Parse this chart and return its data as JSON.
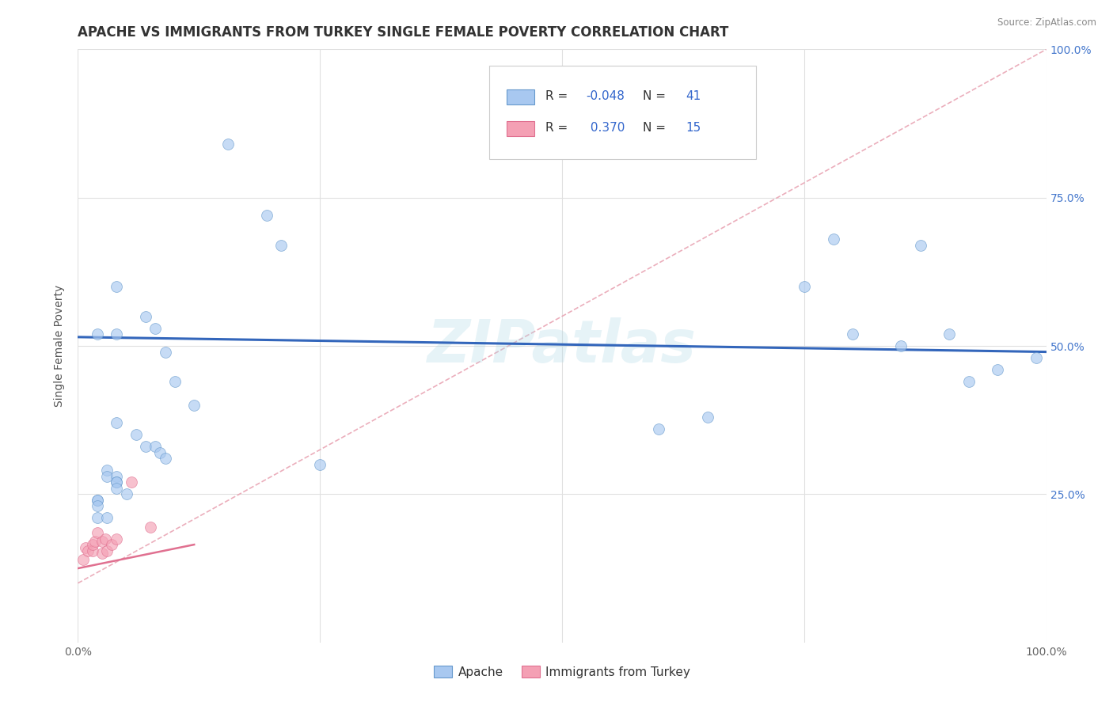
{
  "title": "APACHE VS IMMIGRANTS FROM TURKEY SINGLE FEMALE POVERTY CORRELATION CHART",
  "source": "Source: ZipAtlas.com",
  "ylabel": "Single Female Poverty",
  "watermark": "ZIPatlas",
  "xlim": [
    0.0,
    1.0
  ],
  "ylim": [
    0.0,
    1.0
  ],
  "ytick_positions": [
    0.25,
    0.5,
    0.75,
    1.0
  ],
  "ytick_labels": [
    "25.0%",
    "50.0%",
    "75.0%",
    "100.0%"
  ],
  "legend_r_apache": "-0.048",
  "legend_n_apache": "41",
  "legend_r_turkey": "0.370",
  "legend_n_turkey": "15",
  "apache_color": "#a8c8f0",
  "turkey_color": "#f4a0b4",
  "apache_edge_color": "#6699cc",
  "turkey_edge_color": "#e07090",
  "trendline_apache_color": "#3366bb",
  "trendline_turkey_color": "#e07090",
  "dashed_color": "#e8a0b0",
  "apache_points_x": [
    0.02,
    0.04,
    0.155,
    0.195,
    0.21,
    0.04,
    0.07,
    0.08,
    0.09,
    0.1,
    0.12,
    0.04,
    0.06,
    0.07,
    0.08,
    0.085,
    0.09,
    0.03,
    0.03,
    0.04,
    0.04,
    0.04,
    0.04,
    0.05,
    0.02,
    0.02,
    0.02,
    0.02,
    0.03,
    0.25,
    0.65,
    0.75,
    0.78,
    0.8,
    0.85,
    0.87,
    0.9,
    0.92,
    0.95,
    0.99,
    0.6
  ],
  "apache_points_y": [
    0.52,
    0.52,
    0.84,
    0.72,
    0.67,
    0.6,
    0.55,
    0.53,
    0.49,
    0.44,
    0.4,
    0.37,
    0.35,
    0.33,
    0.33,
    0.32,
    0.31,
    0.29,
    0.28,
    0.28,
    0.27,
    0.27,
    0.26,
    0.25,
    0.24,
    0.24,
    0.23,
    0.21,
    0.21,
    0.3,
    0.38,
    0.6,
    0.68,
    0.52,
    0.5,
    0.67,
    0.52,
    0.44,
    0.46,
    0.48,
    0.36
  ],
  "turkey_points_x": [
    0.005,
    0.008,
    0.01,
    0.015,
    0.015,
    0.018,
    0.02,
    0.025,
    0.025,
    0.028,
    0.03,
    0.035,
    0.04,
    0.055,
    0.075
  ],
  "turkey_points_y": [
    0.14,
    0.16,
    0.155,
    0.155,
    0.165,
    0.17,
    0.185,
    0.15,
    0.17,
    0.175,
    0.155,
    0.165,
    0.175,
    0.27,
    0.195
  ],
  "apache_trend_x": [
    0.0,
    1.0
  ],
  "apache_trend_y": [
    0.515,
    0.49
  ],
  "turkey_trend_x": [
    0.0,
    0.12
  ],
  "turkey_trend_y": [
    0.125,
    0.165
  ],
  "dashed_trend_x": [
    0.0,
    1.0
  ],
  "dashed_trend_y": [
    0.1,
    1.0
  ],
  "background_color": "#ffffff",
  "grid_color": "#e0e0e0",
  "title_fontsize": 12,
  "tick_fontsize": 10,
  "marker_size": 100,
  "marker_alpha": 0.65
}
